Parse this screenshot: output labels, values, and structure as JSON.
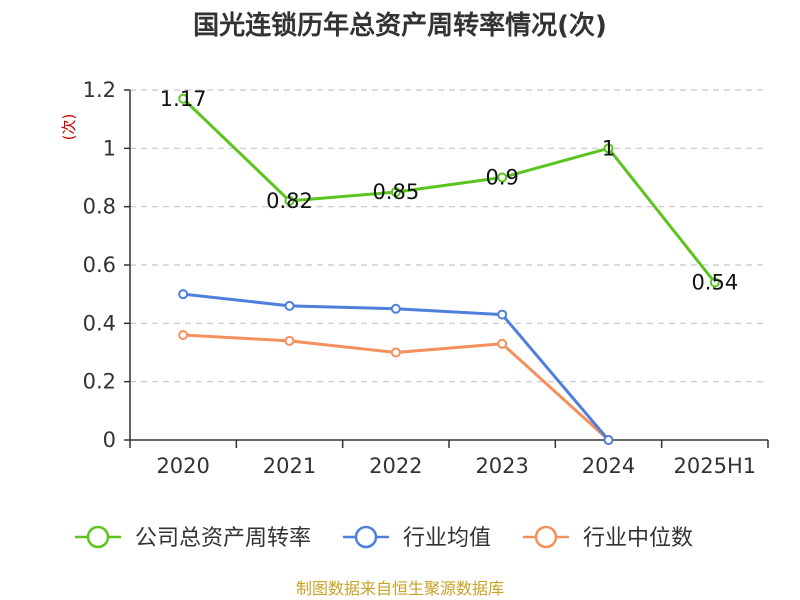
{
  "chart_data": {
    "type": "line",
    "title": "国光连锁历年总资产周转率情况(次)",
    "ylabel": "(次)",
    "xlabel": "",
    "categories": [
      "2020",
      "2021",
      "2022",
      "2023",
      "2024",
      "2025H1"
    ],
    "ylim": [
      0,
      1.2
    ],
    "yticks": [
      0,
      0.2,
      0.4,
      0.6,
      0.8,
      1,
      1.2
    ],
    "grid": true,
    "legend_position": "bottom",
    "series": [
      {
        "name": "公司总资产周转率",
        "color": "#5cc41f",
        "values": [
          1.17,
          0.82,
          0.85,
          0.9,
          1,
          0.54
        ],
        "data_labels": [
          "1.17",
          "0.82",
          "0.85",
          "0.9",
          "1",
          "0.54"
        ]
      },
      {
        "name": "行业均值",
        "color": "#4f7fdc",
        "values": [
          0.5,
          0.46,
          0.45,
          0.43,
          0,
          null
        ]
      },
      {
        "name": "行业中位数",
        "color": "#f4905c",
        "values": [
          0.36,
          0.34,
          0.3,
          0.33,
          0,
          null
        ]
      }
    ]
  },
  "source_text": "制图数据来自恒生聚源数据库"
}
